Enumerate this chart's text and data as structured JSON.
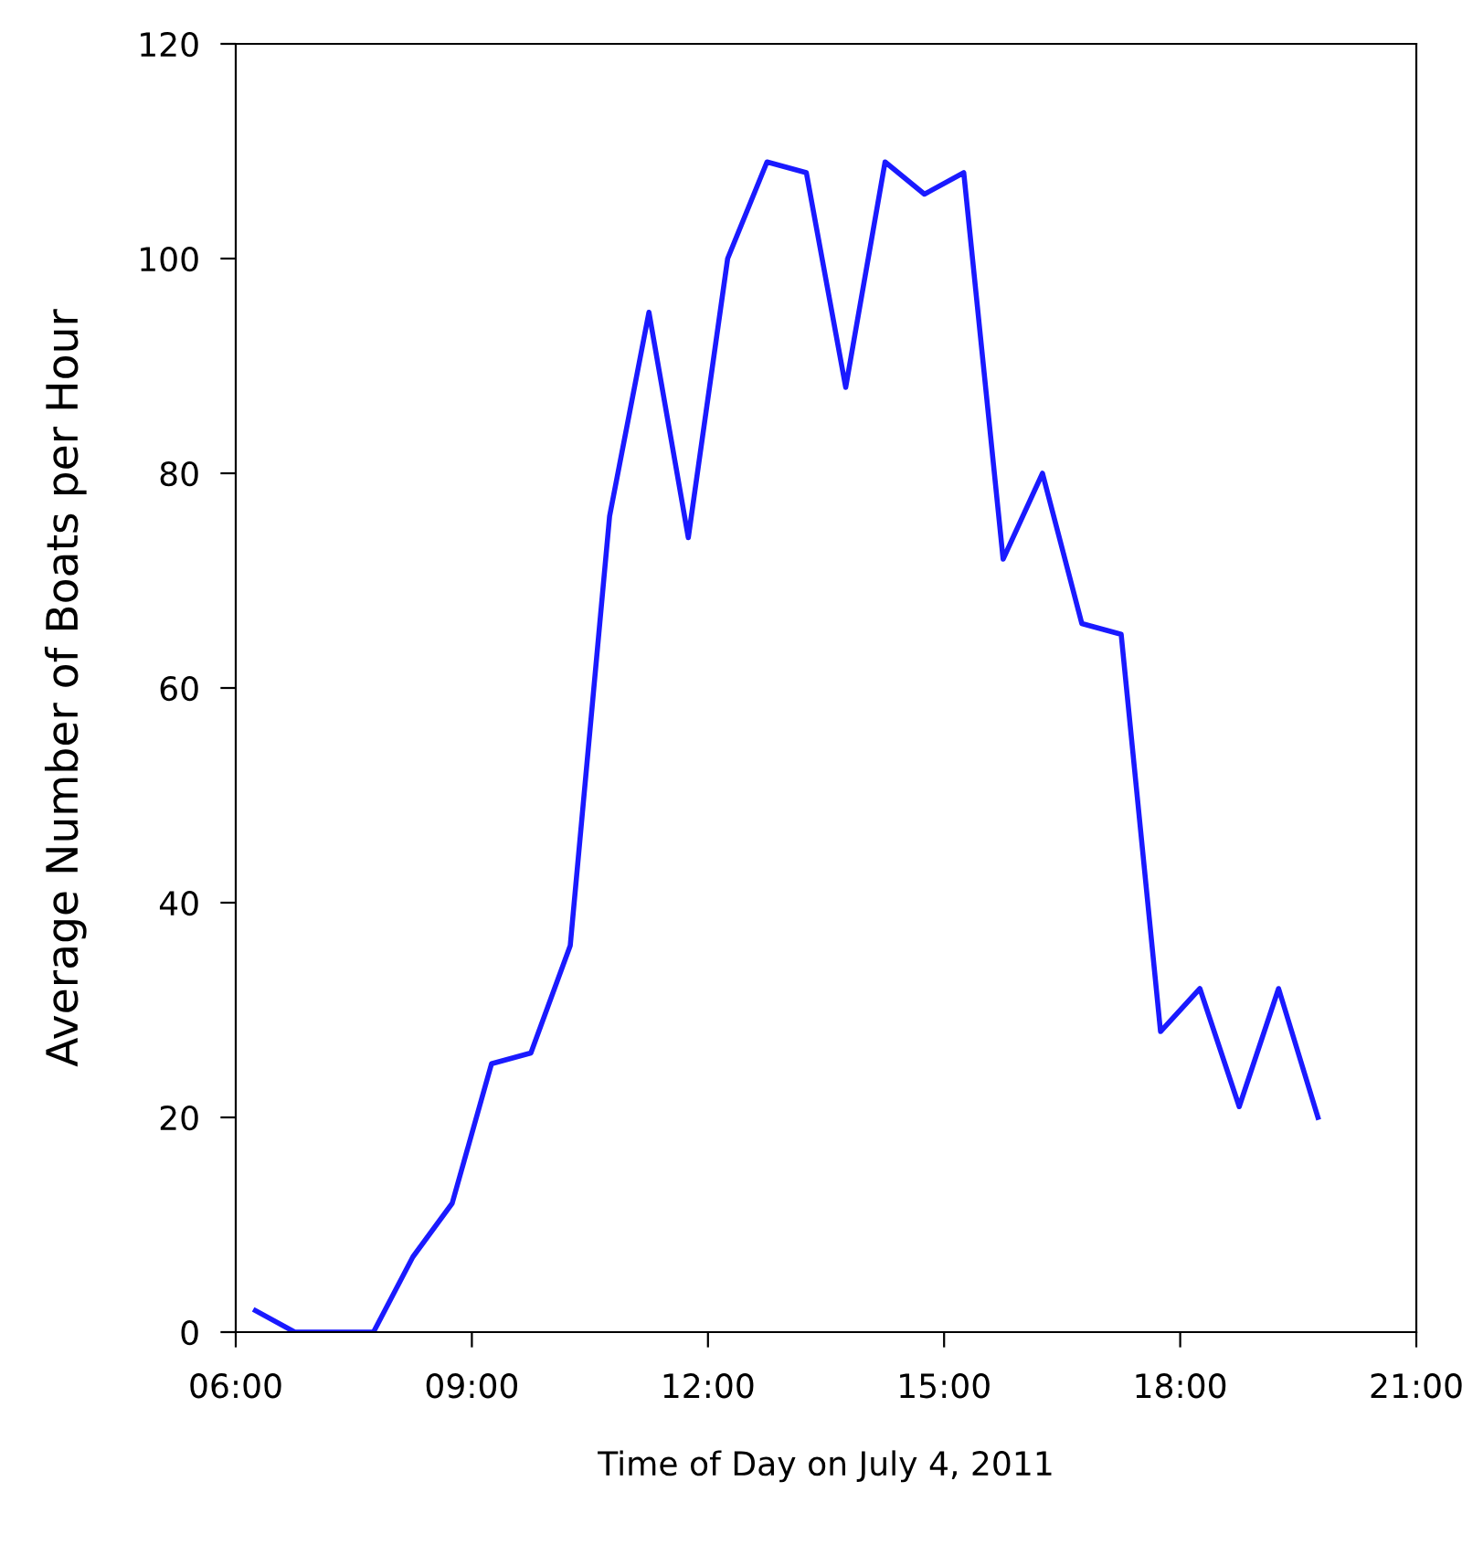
{
  "chart_data": {
    "type": "line",
    "xlabel": "Time of Day on July 4, 2011",
    "ylabel": "Average Number of Boats per Hour",
    "x": [
      6.25,
      6.75,
      7.25,
      7.75,
      8.25,
      8.75,
      9.25,
      9.75,
      10.25,
      10.75,
      11.25,
      11.75,
      12.25,
      12.75,
      13.25,
      13.75,
      14.25,
      14.75,
      15.25,
      15.75,
      16.25,
      16.75,
      17.25,
      17.75,
      18.25,
      18.75,
      19.25,
      19.75
    ],
    "series": [
      {
        "color": "#1a1aff",
        "values": [
          2,
          0,
          0,
          0,
          7,
          12,
          25,
          26,
          36,
          76,
          95,
          74,
          100,
          109,
          108,
          88,
          109,
          106,
          108,
          72,
          80,
          66,
          65,
          28,
          32,
          21,
          32,
          20
        ]
      }
    ],
    "xlim": [
      6,
      21
    ],
    "ylim": [
      0,
      120
    ],
    "xticks": [
      {
        "value": 6,
        "label": "06:00"
      },
      {
        "value": 9,
        "label": "09:00"
      },
      {
        "value": 12,
        "label": "12:00"
      },
      {
        "value": 15,
        "label": "15:00"
      },
      {
        "value": 18,
        "label": "18:00"
      },
      {
        "value": 21,
        "label": "21:00"
      }
    ],
    "yticks": [
      0,
      20,
      40,
      60,
      80,
      100,
      120
    ],
    "grid": false,
    "marker": "none",
    "line_style": "solid"
  }
}
